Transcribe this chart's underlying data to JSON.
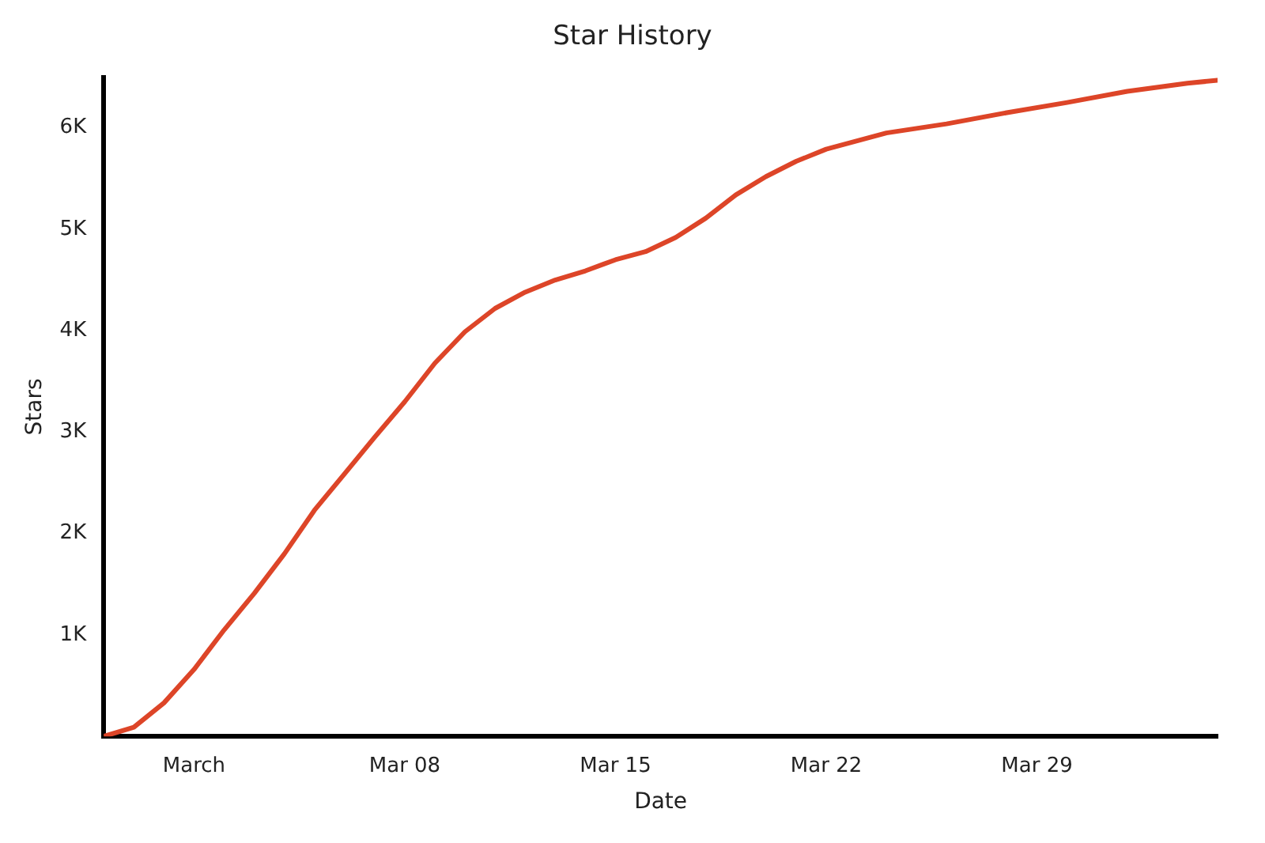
{
  "chart_data": {
    "type": "line",
    "title": "Star History",
    "xlabel": "Date",
    "ylabel": "Stars",
    "x": [
      "--02-26",
      "--02-27",
      "--02-28",
      "--03-01",
      "--03-02",
      "--03-03",
      "--03-04",
      "--03-05",
      "--03-06",
      "--03-07",
      "--03-08",
      "--03-09",
      "--03-10",
      "--03-11",
      "--03-12",
      "--03-13",
      "--03-14",
      "--03-15",
      "--03-16",
      "--03-17",
      "--03-18",
      "--03-19",
      "--03-20",
      "--03-21",
      "--03-22",
      "--03-23",
      "--03-24",
      "--03-26",
      "--03-28",
      "--03-30",
      "--04-01",
      "--04-03",
      "--04-04"
    ],
    "series": [
      {
        "color": "#dd4528",
        "values": [
          0,
          90,
          330,
          660,
          1050,
          1410,
          1800,
          2230,
          2590,
          2950,
          3300,
          3680,
          3990,
          4220,
          4380,
          4500,
          4590,
          4700,
          4780,
          4920,
          5110,
          5340,
          5520,
          5670,
          5790,
          5870,
          5950,
          6040,
          6150,
          6250,
          6360,
          6440,
          6470
        ]
      }
    ],
    "xlim": [
      "--02-26",
      "--04-04"
    ],
    "xticks": [
      {
        "value": "--03-01",
        "label": "March"
      },
      {
        "value": "--03-08",
        "label": "Mar 08"
      },
      {
        "value": "--03-15",
        "label": "Mar 15"
      },
      {
        "value": "--03-22",
        "label": "Mar 22"
      },
      {
        "value": "--03-29",
        "label": "Mar 29"
      }
    ],
    "ylim": [
      0,
      6500
    ],
    "yticks": [
      {
        "value": 1000,
        "label": "1K"
      },
      {
        "value": 2000,
        "label": "2K"
      },
      {
        "value": 3000,
        "label": "3K"
      },
      {
        "value": 4000,
        "label": "4K"
      },
      {
        "value": 5000,
        "label": "5K"
      },
      {
        "value": 6000,
        "label": "6K"
      }
    ],
    "grid": false,
    "legend": false,
    "marker": "none",
    "line_style": "solid"
  }
}
